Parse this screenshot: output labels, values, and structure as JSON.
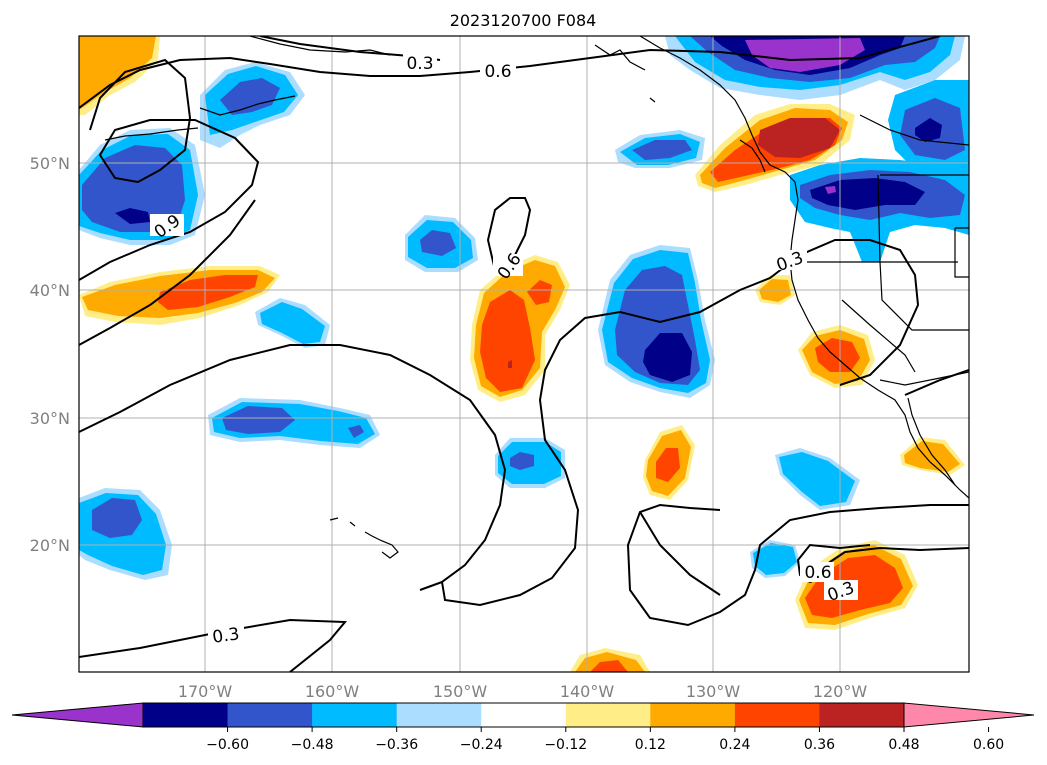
{
  "map": {
    "title": "2023120700 F084",
    "lat_labels": [
      "50°N",
      "40°N",
      "30°N",
      "20°N"
    ],
    "lon_labels": [
      "170°W",
      "160°W",
      "150°W",
      "140°W",
      "130°W",
      "120°W"
    ],
    "contour_labels": [
      "0.6",
      "0.3",
      "0.9",
      "0.6",
      "0.3",
      "0.6",
      "0.3",
      "0.3"
    ],
    "colorbar": {
      "tick_labels": [
        "−0.60",
        "−0.48",
        "−0.36",
        "−0.24",
        "−0.12",
        "0.12",
        "0.24",
        "0.36",
        "0.48",
        "0.60"
      ],
      "colors": [
        "#9933cc",
        "#000088",
        "#3355cc",
        "#00bbff",
        "#aaddff",
        "#ffffff",
        "#ffee88",
        "#ffaa00",
        "#ff4400",
        "#bb2222",
        "#ff88aa"
      ]
    },
    "palette": {
      "neg_extreme": "#9933cc",
      "neg_dark": "#000088",
      "neg_mid": "#3355cc",
      "neg_light": "#00bbff",
      "neg_pale": "#aaddff",
      "pos_pale": "#ffee88",
      "pos_light": "#ffaa00",
      "pos_mid": "#ff4400",
      "pos_dark": "#bb2222"
    }
  }
}
